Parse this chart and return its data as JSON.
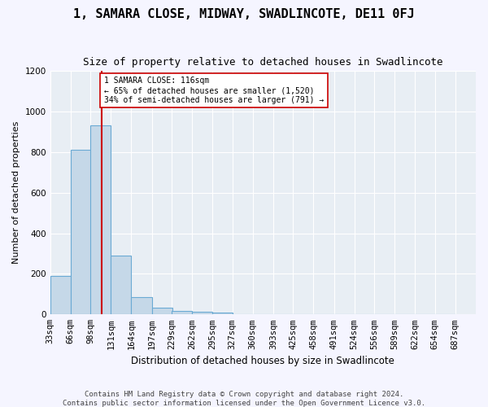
{
  "title": "1, SAMARA CLOSE, MIDWAY, SWADLINCOTE, DE11 0FJ",
  "subtitle": "Size of property relative to detached houses in Swadlincote",
  "xlabel": "Distribution of detached houses by size in Swadlincote",
  "ylabel": "Number of detached properties",
  "footer1": "Contains HM Land Registry data © Crown copyright and database right 2024.",
  "footer2": "Contains public sector information licensed under the Open Government Licence v3.0.",
  "bin_labels": [
    "33sqm",
    "66sqm",
    "98sqm",
    "131sqm",
    "164sqm",
    "197sqm",
    "229sqm",
    "262sqm",
    "295sqm",
    "327sqm",
    "360sqm",
    "393sqm",
    "425sqm",
    "458sqm",
    "491sqm",
    "524sqm",
    "556sqm",
    "589sqm",
    "622sqm",
    "654sqm",
    "687sqm"
  ],
  "bin_left_edges": [
    33,
    66,
    98,
    131,
    164,
    197,
    229,
    262,
    295,
    327,
    360,
    393,
    425,
    458,
    491,
    524,
    556,
    589,
    622,
    654
  ],
  "bar_values": [
    190,
    810,
    930,
    290,
    85,
    35,
    18,
    12,
    8,
    0,
    0,
    0,
    0,
    0,
    0,
    0,
    0,
    0,
    0,
    0
  ],
  "bar_color": "#c5d8e8",
  "bar_edge_color": "#6aaad4",
  "vline_x": 116,
  "vline_color": "#cc0000",
  "annotation_text": "1 SAMARA CLOSE: 116sqm\n← 65% of detached houses are smaller (1,520)\n34% of semi-detached houses are larger (791) →",
  "annotation_box_color": "#ffffff",
  "annotation_box_edge": "#cc0000",
  "ylim": [
    0,
    1200
  ],
  "yticks": [
    0,
    200,
    400,
    600,
    800,
    1000,
    1200
  ],
  "xlim_left": 33,
  "xlim_right": 687,
  "background_color": "#e8eef4",
  "grid_color": "#ffffff",
  "title_fontsize": 11,
  "subtitle_fontsize": 9,
  "xlabel_fontsize": 8.5,
  "ylabel_fontsize": 8,
  "tick_fontsize": 7.5,
  "footer_fontsize": 6.5,
  "all_tick_positions": [
    33,
    66,
    98,
    131,
    164,
    197,
    229,
    262,
    295,
    327,
    360,
    393,
    425,
    458,
    491,
    524,
    556,
    589,
    622,
    654,
    687
  ]
}
